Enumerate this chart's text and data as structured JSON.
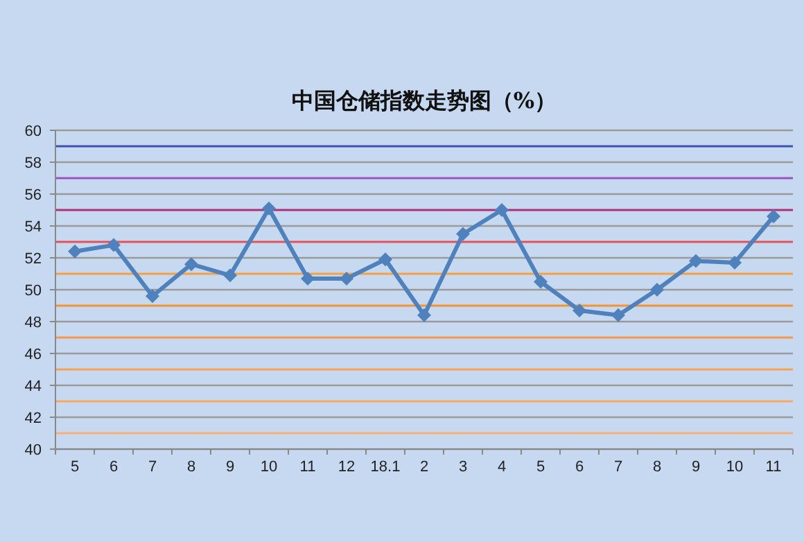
{
  "chart_data": {
    "type": "line",
    "title": "中国仓储指数走势图（%）",
    "categories": [
      "5",
      "6",
      "7",
      "8",
      "9",
      "10",
      "11",
      "12",
      "18.1",
      "2",
      "3",
      "4",
      "5",
      "6",
      "7",
      "8",
      "9",
      "10",
      "11"
    ],
    "series": [
      {
        "color": "#4f81bd",
        "values": [
          52.4,
          52.8,
          49.6,
          51.6,
          50.9,
          55.1,
          50.7,
          50.7,
          51.9,
          48.4,
          53.5,
          55.0,
          50.5,
          48.7,
          48.4,
          50.0,
          51.8,
          51.7,
          54.6
        ]
      }
    ],
    "ylim": [
      40,
      60
    ],
    "yticks": [
      40,
      42,
      44,
      46,
      48,
      50,
      52,
      54,
      56,
      58,
      60
    ],
    "grid": "y",
    "marker": "diamond",
    "line_style": "solid",
    "ref_lines": [
      {
        "axis": "y",
        "value": 41,
        "color": "#f9b073"
      },
      {
        "axis": "y",
        "value": 43,
        "color": "#f9a862"
      },
      {
        "axis": "y",
        "value": 45,
        "color": "#f9a052"
      },
      {
        "axis": "y",
        "value": 47,
        "color": "#f79646"
      },
      {
        "axis": "y",
        "value": 49,
        "color": "#f79230"
      },
      {
        "axis": "y",
        "value": 51,
        "color": "#f7a040"
      },
      {
        "axis": "y",
        "value": 53,
        "color": "#e5505a"
      },
      {
        "axis": "y",
        "value": 55,
        "color": "#b0307a"
      },
      {
        "axis": "y",
        "value": 57,
        "color": "#9a52c0"
      },
      {
        "axis": "y",
        "value": 59,
        "color": "#3f4fb0"
      }
    ]
  }
}
